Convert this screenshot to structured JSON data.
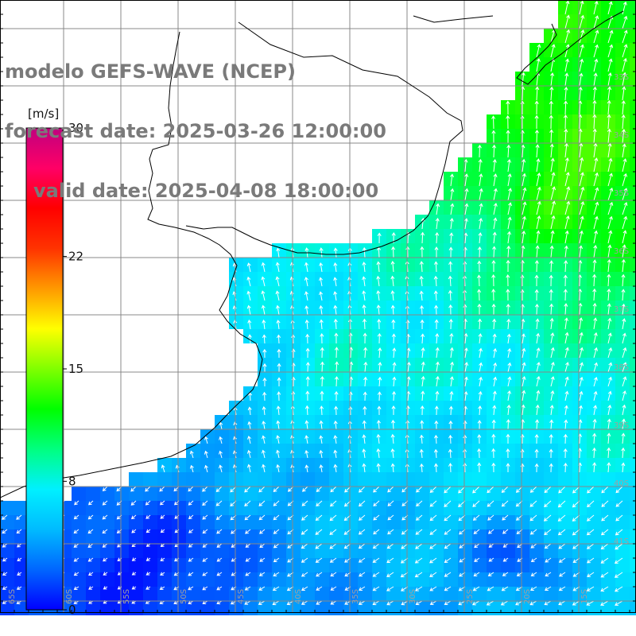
{
  "title": {
    "model": "modelo GEFS-WAVE (NCEP)",
    "forecast": "forecast date: 2025-03-26 12:00:00",
    "valid": "valid date: 2025-04-08 18:00:00"
  },
  "colorbar": {
    "unit": "[m/s]",
    "ticks": [
      {
        "value": 30,
        "label": "30"
      },
      {
        "value": 22,
        "label": "22"
      },
      {
        "value": 15,
        "label": "15"
      },
      {
        "value": 8,
        "label": "8"
      },
      {
        "value": 0,
        "label": "0"
      }
    ],
    "range": [
      0,
      30
    ],
    "gradient": [
      "#0000ff",
      "#0066ff",
      "#00bbff",
      "#00f0ff",
      "#00ff80",
      "#00ff00",
      "#80ff00",
      "#ffff00",
      "#ff9900",
      "#ff3300",
      "#ff0000",
      "#ff0066",
      "#c0007f"
    ]
  },
  "lon_labels": [
    "65S",
    "60S",
    "55S",
    "50S",
    "45S",
    "40S",
    "35S",
    "30S",
    "25S",
    "20S",
    "15S"
  ],
  "lat_labels": [
    "33S",
    "34S",
    "35S",
    "36S",
    "37S",
    "38S",
    "39S",
    "40S",
    "41S"
  ],
  "field": {
    "type": "heatmap",
    "variable": "wind speed",
    "unit": "m/s",
    "description_hint": "speeds mostly 2-13 m/s; strongest (~12-13) in the NE, weakest (~1-3) in the SW and SE pockets"
  },
  "colors": {
    "background": "#ffffff",
    "grid": "#888888",
    "coast": "#000000",
    "title": "#7a7a7a",
    "arrows": "#ffffff",
    "frame": "#000000"
  }
}
